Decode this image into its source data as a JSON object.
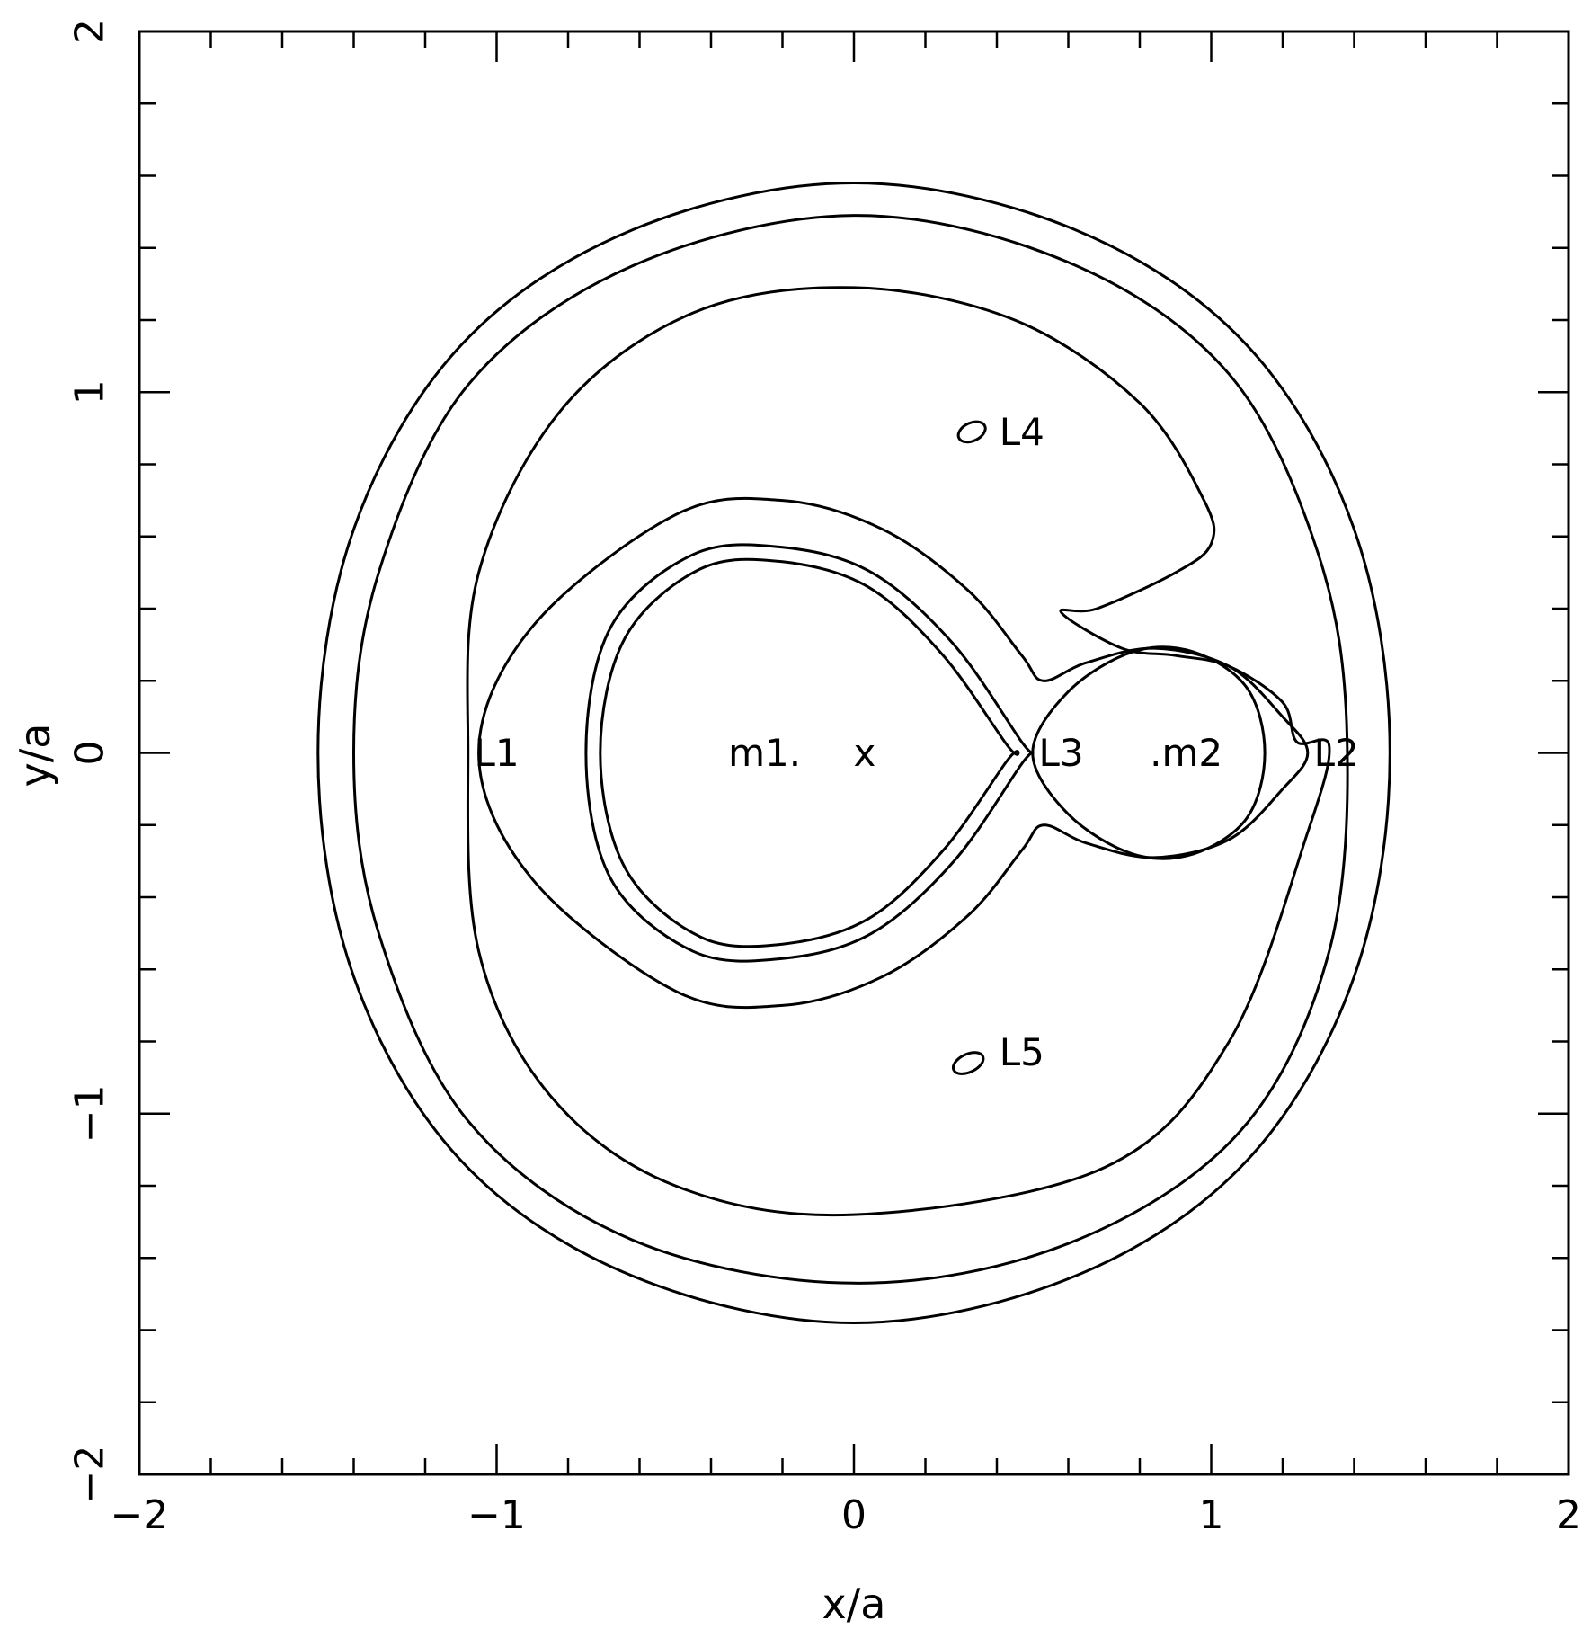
{
  "chart_data": {
    "type": "contour",
    "xlabel": "x/a",
    "ylabel": "y/a",
    "xlim": [
      -2,
      2
    ],
    "ylim": [
      -2,
      2
    ],
    "x_ticks": [
      -2,
      -1,
      0,
      1,
      2
    ],
    "y_ticks": [
      -2,
      -1,
      0,
      1,
      2
    ],
    "x_tick_labels": [
      "−2",
      "−1",
      "0",
      "1",
      "2"
    ],
    "y_tick_labels": [
      "−2",
      "−1",
      "0",
      "1",
      "2"
    ],
    "minor_tick_step": 0.2,
    "grid": false,
    "point_labels": [
      {
        "text": "L1",
        "x": -1.0,
        "y": 0.0
      },
      {
        "text": "L2",
        "x": 1.35,
        "y": 0.0
      },
      {
        "text": "L3",
        "x": 0.58,
        "y": 0.0
      },
      {
        "text": "L4",
        "x": 0.47,
        "y": 0.89
      },
      {
        "text": "L5",
        "x": 0.47,
        "y": -0.83
      },
      {
        "text": "m1.",
        "x": -0.25,
        "y": 0.0
      },
      {
        "text": "x",
        "x": 0.03,
        "y": 0.0
      },
      {
        "text": ".m2",
        "x": 0.93,
        "y": 0.0
      }
    ],
    "contours": [
      {
        "name": "outermost-circle",
        "points": [
          [
            0,
            1.58
          ],
          [
            0.62,
            1.45
          ],
          [
            1.1,
            1.13
          ],
          [
            1.4,
            0.62
          ],
          [
            1.5,
            0
          ],
          [
            1.4,
            -0.62
          ],
          [
            1.1,
            -1.13
          ],
          [
            0.62,
            -1.45
          ],
          [
            0,
            -1.58
          ],
          [
            -0.62,
            -1.45
          ],
          [
            -1.1,
            -1.13
          ],
          [
            -1.4,
            -0.62
          ],
          [
            -1.5,
            0
          ],
          [
            -1.4,
            0.62
          ],
          [
            -1.1,
            1.13
          ],
          [
            -0.62,
            1.45
          ]
        ]
      },
      {
        "name": "second-circle",
        "points": [
          [
            0,
            1.49
          ],
          [
            0.6,
            1.36
          ],
          [
            1.05,
            1.05
          ],
          [
            1.3,
            0.55
          ],
          [
            1.38,
            0.05
          ],
          [
            1.33,
            -0.55
          ],
          [
            1.08,
            -1.05
          ],
          [
            0.6,
            -1.36
          ],
          [
            0,
            -1.47
          ],
          [
            -0.62,
            -1.35
          ],
          [
            -1.08,
            -1.02
          ],
          [
            -1.33,
            -0.5
          ],
          [
            -1.4,
            0
          ],
          [
            -1.33,
            0.5
          ],
          [
            -1.08,
            1.02
          ],
          [
            -0.62,
            1.35
          ]
        ]
      },
      {
        "name": "horseshoe",
        "points": [
          [
            -1.08,
            0
          ],
          [
            -1.05,
            0.5
          ],
          [
            -0.82,
            0.95
          ],
          [
            -0.45,
            1.22
          ],
          [
            0,
            1.29
          ],
          [
            0.45,
            1.2
          ],
          [
            0.8,
            0.97
          ],
          [
            0.98,
            0.7
          ],
          [
            1.0,
            0.58
          ],
          [
            0.9,
            0.5
          ],
          [
            0.68,
            0.4
          ],
          [
            0.58,
            0.39
          ],
          [
            0.75,
            0.29
          ],
          [
            0.9,
            0.27
          ],
          [
            1.05,
            0.24
          ],
          [
            1.2,
            0.14
          ],
          [
            1.24,
            0.03
          ],
          [
            1.33,
            0.02
          ],
          [
            1.27,
            -0.22
          ],
          [
            1.05,
            -0.8
          ],
          [
            0.7,
            -1.15
          ],
          [
            0,
            -1.28
          ],
          [
            -0.5,
            -1.2
          ],
          [
            -0.85,
            -0.95
          ],
          [
            -1.05,
            -0.55
          ]
        ]
      },
      {
        "name": "dumbbell",
        "points": [
          [
            -1.05,
            0
          ],
          [
            -0.9,
            0.35
          ],
          [
            -0.5,
            0.66
          ],
          [
            -0.2,
            0.7
          ],
          [
            0.08,
            0.62
          ],
          [
            0.32,
            0.45
          ],
          [
            0.47,
            0.27
          ],
          [
            0.53,
            0.2
          ],
          [
            0.65,
            0.25
          ],
          [
            0.84,
            0.29
          ],
          [
            1.05,
            0.24
          ],
          [
            1.2,
            0.1
          ],
          [
            1.27,
            0
          ],
          [
            1.2,
            -0.1
          ],
          [
            1.05,
            -0.24
          ],
          [
            0.84,
            -0.29
          ],
          [
            0.65,
            -0.25
          ],
          [
            0.53,
            -0.2
          ],
          [
            0.47,
            -0.27
          ],
          [
            0.32,
            -0.45
          ],
          [
            0.08,
            -0.62
          ],
          [
            -0.2,
            -0.7
          ],
          [
            -0.5,
            -0.66
          ],
          [
            -0.9,
            -0.35
          ]
        ]
      },
      {
        "name": "inner-lobe-outer",
        "points": [
          [
            -0.75,
            0
          ],
          [
            -0.68,
            0.35
          ],
          [
            -0.45,
            0.55
          ],
          [
            -0.2,
            0.57
          ],
          [
            0.05,
            0.5
          ],
          [
            0.28,
            0.3
          ],
          [
            0.47,
            0.03
          ],
          [
            0.5,
            0
          ],
          [
            0.47,
            -0.03
          ],
          [
            0.28,
            -0.3
          ],
          [
            0.05,
            -0.5
          ],
          [
            -0.2,
            -0.57
          ],
          [
            -0.45,
            -0.55
          ],
          [
            -0.68,
            -0.35
          ]
        ]
      },
      {
        "name": "inner-lobe-inner",
        "points": [
          [
            -0.71,
            0
          ],
          [
            -0.64,
            0.32
          ],
          [
            -0.43,
            0.51
          ],
          [
            -0.2,
            0.53
          ],
          [
            0.04,
            0.46
          ],
          [
            0.25,
            0.27
          ],
          [
            0.43,
            0.02
          ],
          [
            0.46,
            0
          ],
          [
            0.43,
            -0.02
          ],
          [
            0.25,
            -0.27
          ],
          [
            0.04,
            -0.46
          ],
          [
            -0.2,
            -0.53
          ],
          [
            -0.43,
            -0.51
          ],
          [
            -0.64,
            -0.32
          ]
        ]
      },
      {
        "name": "m2-lobe",
        "points": [
          [
            0.5,
            0
          ],
          [
            0.6,
            0.17
          ],
          [
            0.78,
            0.28
          ],
          [
            0.95,
            0.28
          ],
          [
            1.1,
            0.18
          ],
          [
            1.15,
            0
          ],
          [
            1.1,
            -0.18
          ],
          [
            0.95,
            -0.28
          ],
          [
            0.78,
            -0.28
          ],
          [
            0.6,
            -0.17
          ]
        ]
      }
    ],
    "small_ellipses": [
      {
        "name": "L4",
        "cx": 0.33,
        "cy": 0.89,
        "rx": 0.04,
        "ry": 0.025
      },
      {
        "name": "L5",
        "cx": 0.32,
        "cy": -0.86,
        "rx": 0.045,
        "ry": 0.025
      }
    ]
  }
}
